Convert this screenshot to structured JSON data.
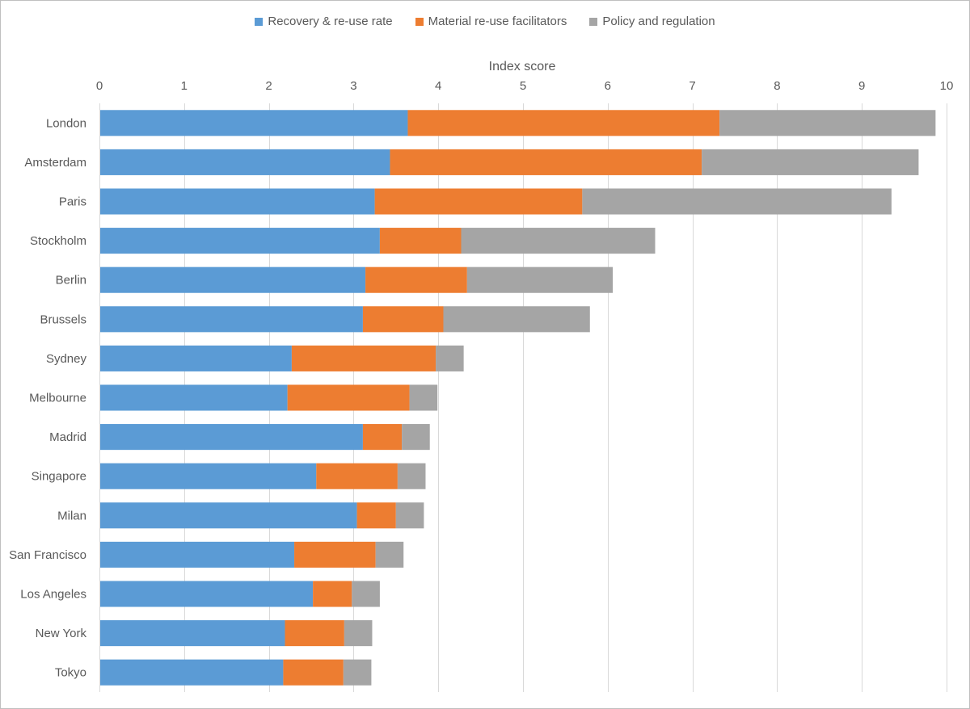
{
  "chart_data": {
    "type": "bar",
    "orientation": "horizontal",
    "stacked": true,
    "title": "",
    "xlabel": "Index score",
    "ylabel": "",
    "xlim": [
      0,
      10
    ],
    "x_ticks": [
      "0",
      "1",
      "2",
      "3",
      "4",
      "5",
      "6",
      "7",
      "8",
      "9",
      "10"
    ],
    "grid": true,
    "legend_position": "top",
    "categories": [
      "London",
      "Amsterdam",
      "Paris",
      "Stockholm",
      "Berlin",
      "Brussels",
      "Sydney",
      "Melbourne",
      "Madrid",
      "Singapore",
      "Milan",
      "San Francisco",
      "Los Angeles",
      "New York",
      "Tokyo"
    ],
    "series": [
      {
        "name": "Recovery & re-use rate",
        "color": "#5b9bd5",
        "values": [
          3.64,
          3.43,
          3.25,
          3.31,
          3.14,
          3.11,
          2.27,
          2.22,
          3.11,
          2.56,
          3.04,
          2.3,
          2.52,
          2.19,
          2.17
        ]
      },
      {
        "name": "Material re-use facilitators",
        "color": "#ed7d31",
        "values": [
          3.68,
          3.68,
          2.45,
          0.96,
          1.2,
          0.95,
          1.7,
          1.44,
          0.46,
          0.96,
          0.46,
          0.96,
          0.46,
          0.7,
          0.71
        ]
      },
      {
        "name": "Policy and regulation",
        "color": "#a5a5a5",
        "values": [
          2.55,
          2.56,
          3.65,
          2.29,
          1.72,
          1.73,
          0.33,
          0.33,
          0.33,
          0.33,
          0.33,
          0.33,
          0.33,
          0.33,
          0.33
        ]
      }
    ]
  }
}
